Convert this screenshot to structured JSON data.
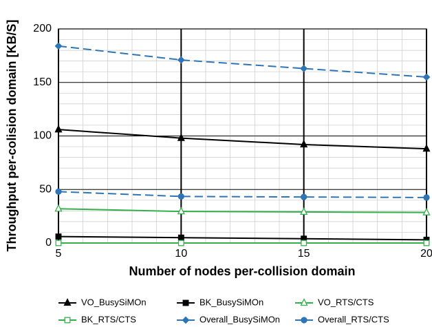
{
  "chart_data": {
    "type": "line",
    "xlabel": "Number of nodes per-collision domain",
    "ylabel": "Throughput per-colision domain [KB/S]",
    "x": [
      5,
      10,
      15,
      20
    ],
    "xlim": [
      5,
      20
    ],
    "xticks": [
      5,
      10,
      15,
      20
    ],
    "ylim": [
      0,
      200
    ],
    "yticks": [
      0,
      50,
      100,
      150,
      200
    ],
    "grid": true,
    "minor_grid": true,
    "legend": "bottom",
    "series": [
      {
        "name": "VO_BusySiMOn",
        "color": "#000000",
        "marker": "triangle",
        "filled": true,
        "dash": false,
        "values": [
          106,
          98,
          92,
          88
        ]
      },
      {
        "name": "BK_BusySiMOn",
        "color": "#000000",
        "marker": "square",
        "filled": true,
        "dash": false,
        "values": [
          6,
          5,
          4,
          3
        ]
      },
      {
        "name": "VO_RTS/CTS",
        "color": "#33b04a",
        "marker": "triangle",
        "filled": false,
        "dash": false,
        "values": [
          32,
          29.5,
          29,
          28.5
        ]
      },
      {
        "name": "BK_RTS/CTS",
        "color": "#33b04a",
        "marker": "square",
        "filled": false,
        "dash": false,
        "values": [
          0,
          0,
          0,
          0
        ]
      },
      {
        "name": "Overall_BusySiMOn",
        "color": "#2e75b6",
        "marker": "diamond",
        "filled": true,
        "dash": true,
        "values": [
          184,
          171,
          163,
          155
        ]
      },
      {
        "name": "Overall_RTS/CTS",
        "color": "#2e75b6",
        "marker": "circle",
        "filled": true,
        "dash": true,
        "values": [
          48,
          43.5,
          43,
          42.5
        ]
      }
    ]
  }
}
